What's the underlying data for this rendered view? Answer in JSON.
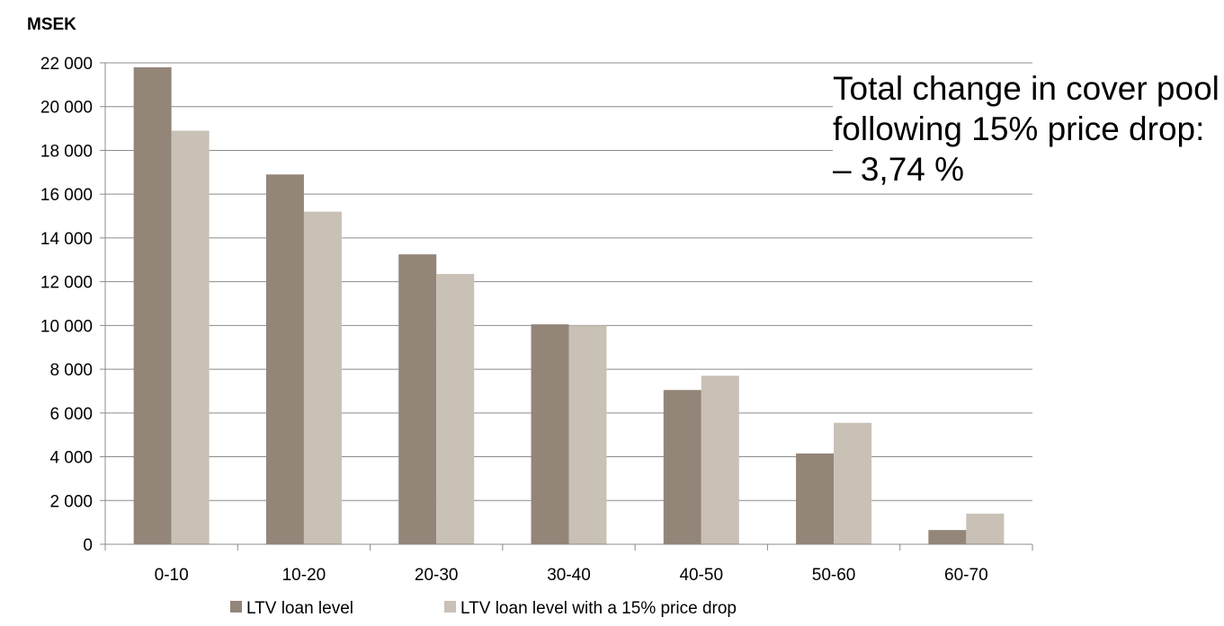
{
  "chart_data": {
    "type": "bar",
    "title": "",
    "ylabel": "MSEK",
    "xlabel": "",
    "categories": [
      "0-10",
      "10-20",
      "20-30",
      "30-40",
      "40-50",
      "50-60",
      "60-70"
    ],
    "series": [
      {
        "name": "LTV loan level",
        "color": "#948579",
        "values": [
          21800,
          16900,
          13250,
          10050,
          7050,
          4150,
          650
        ]
      },
      {
        "name": "LTV loan level with a 15% price drop",
        "color": "#c9c0b6",
        "values": [
          18900,
          15200,
          12350,
          10000,
          7700,
          5550,
          1400
        ]
      }
    ],
    "ylim": [
      0,
      22000
    ],
    "yticks": [
      0,
      2000,
      4000,
      6000,
      8000,
      10000,
      12000,
      14000,
      16000,
      18000,
      20000,
      22000
    ],
    "ytick_labels": [
      "0",
      "2 000",
      "4 000",
      "6 000",
      "8 000",
      "10 000",
      "12 000",
      "14 000",
      "16 000",
      "18 000",
      "20 000",
      "22 000"
    ],
    "grid": true,
    "legend_position": "bottom"
  },
  "annotation": {
    "line1": "Total change in cover pool",
    "line2": "following 15% price drop:",
    "line3": "– 3,74 %"
  }
}
